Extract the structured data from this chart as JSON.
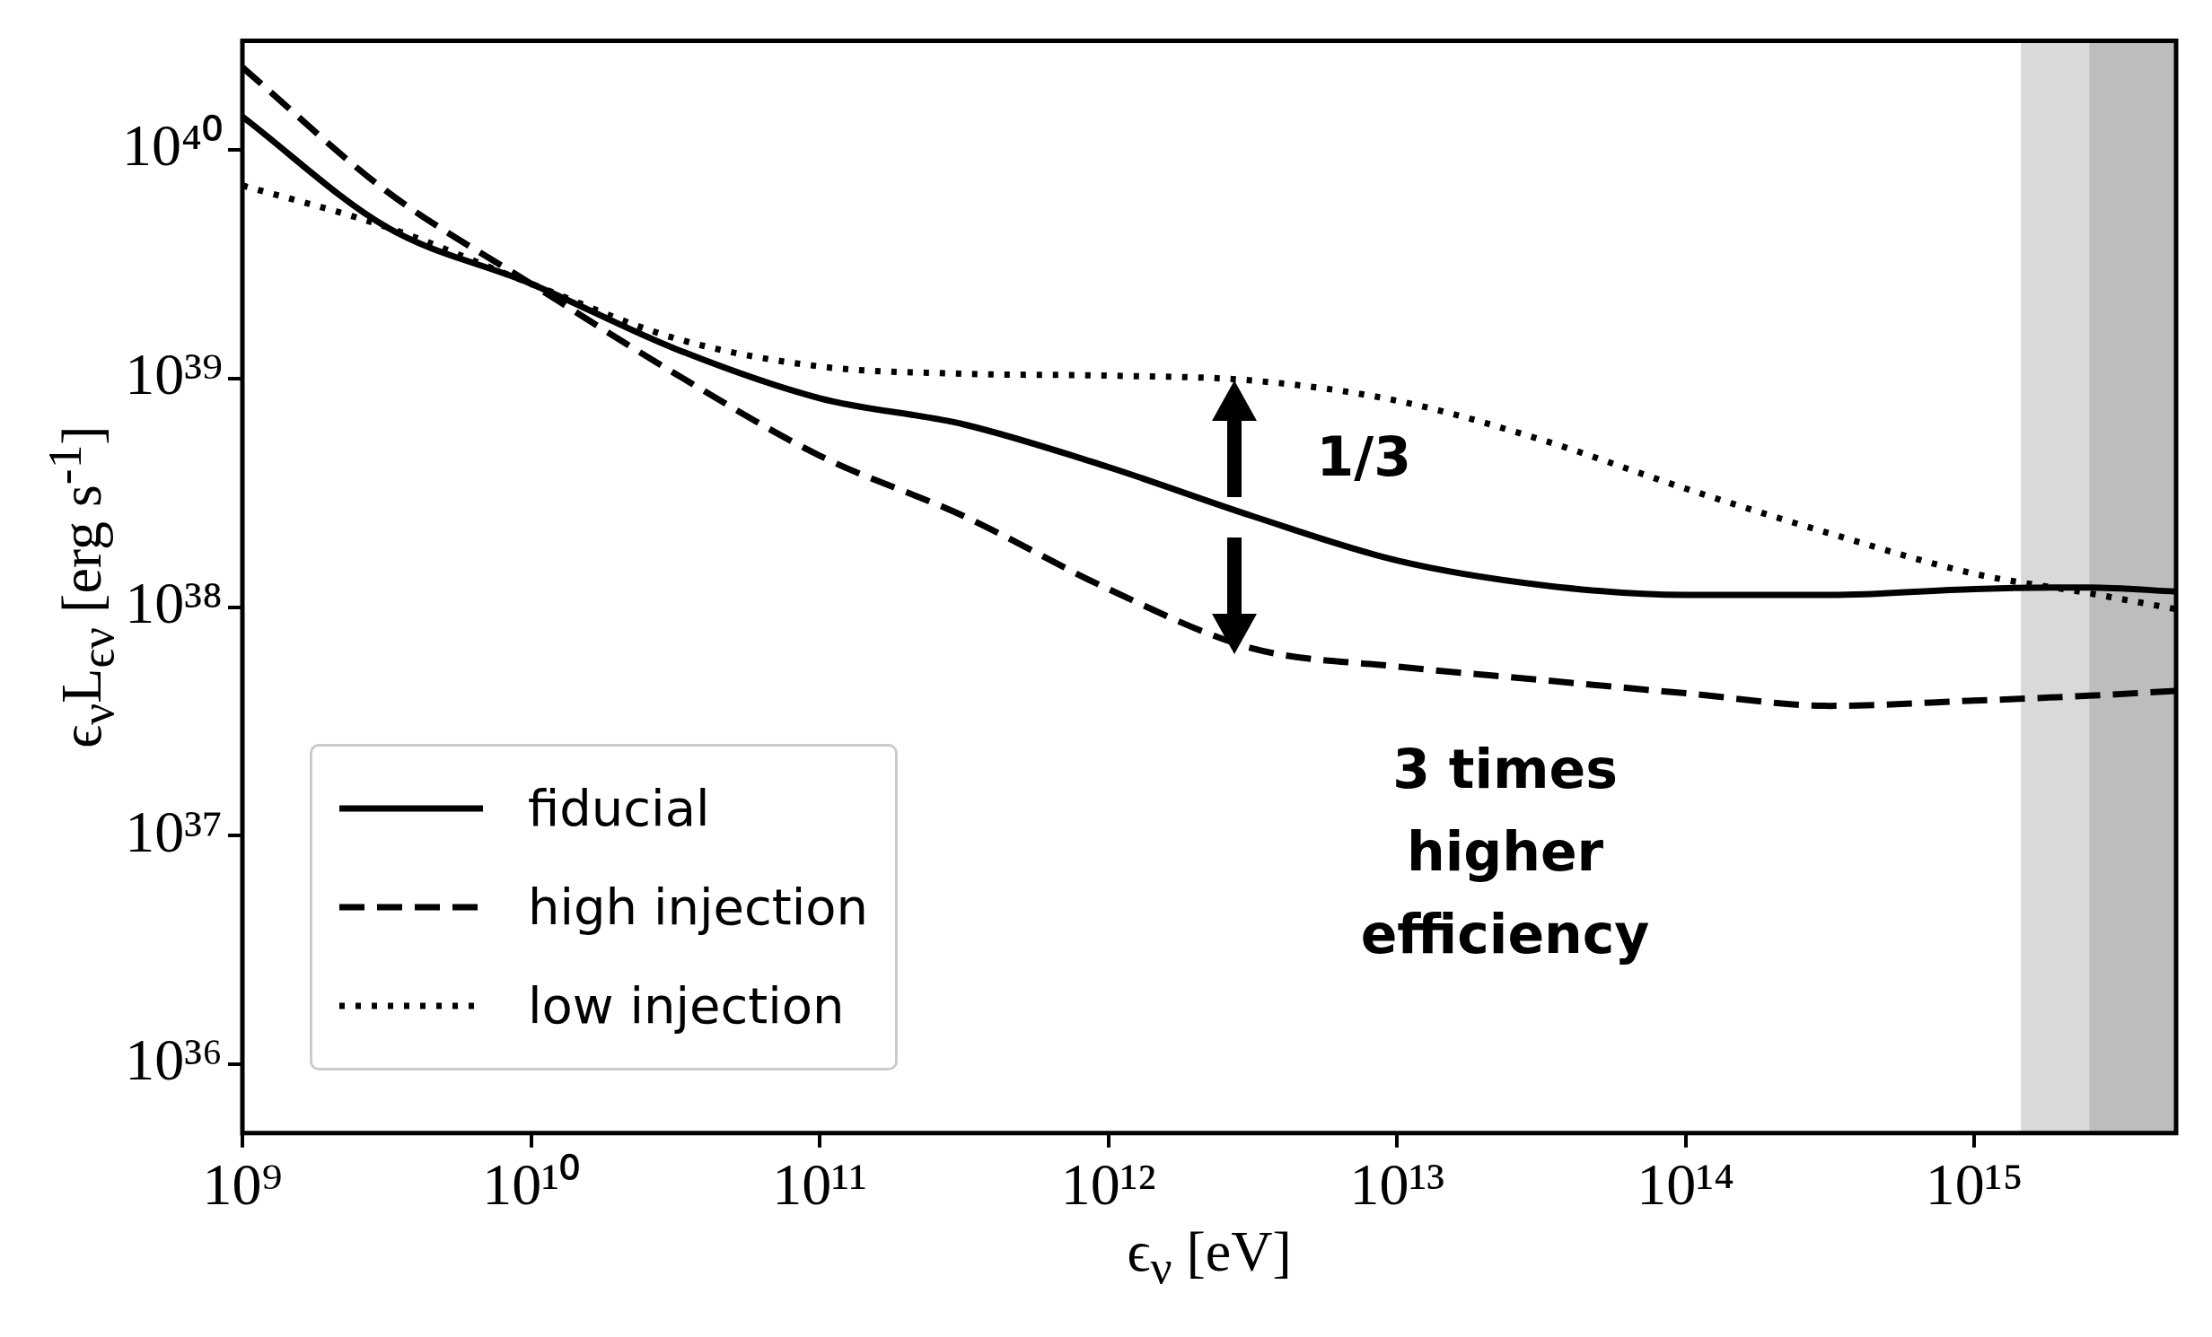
{
  "chart_data": {
    "type": "line",
    "xlabel": "ϵ$_{ν}$ [eV]",
    "ylabel": "ϵ$_{ν}$L$_{ϵν}$ [erg s$^{-1}$]",
    "log": "xy",
    "marker": "none",
    "legend": "bottom left",
    "xlim": [
      1000000000.0,
      5000000000000000.0
    ],
    "ylim": [
      5e+35,
      3e+40
    ],
    "xticks": [
      {
        "value": 1000000000.0,
        "label": "10⁹"
      },
      {
        "value": 10000000000.0,
        "label": "10¹⁰"
      },
      {
        "value": 100000000000.0,
        "label": "10¹¹"
      },
      {
        "value": 1000000000000.0,
        "label": "10¹²"
      },
      {
        "value": 10000000000000.0,
        "label": "10¹³"
      },
      {
        "value": 100000000000000.0,
        "label": "10¹⁴"
      },
      {
        "value": 1000000000000000.0,
        "label": "10¹⁵"
      }
    ],
    "yticks": [
      {
        "value": 1e+36,
        "label": "10³⁶"
      },
      {
        "value": 1e+37,
        "label": "10³⁷"
      },
      {
        "value": 1e+38,
        "label": "10³⁸"
      },
      {
        "value": 1e+39,
        "label": "10³⁹"
      },
      {
        "value": 1e+40,
        "label": "10⁴⁰"
      }
    ],
    "x": [
      1000000000.0,
      3160000000.0,
      10000000000.0,
      31600000000.0,
      100000000000.0,
      316000000000.0,
      1000000000000.0,
      3160000000000.0,
      10000000000000.0,
      31600000000000.0,
      100000000000000.0,
      316000000000000.0,
      1000000000000000.0,
      2500000000000000.0,
      5000000000000000.0
    ],
    "series": [
      {
        "name": "fiducial",
        "color": "#000000",
        "line_style": "solid",
        "values": [
          1.4e+40,
          4.6e+39,
          2.6e+39,
          1.35e+39,
          8.2e+38,
          6.3e+38,
          4.1e+38,
          2.5e+38,
          1.6e+38,
          1.25e+38,
          1.13e+38,
          1.13e+38,
          1.2e+38,
          1.22e+38,
          1.17e+38
        ]
      },
      {
        "name": "high injection",
        "color": "#000000",
        "line_style": "dashed",
        "values": [
          2.3e+40,
          6.6e+39,
          2.6e+39,
          1.05e+39,
          4.6e+38,
          2.5e+38,
          1.2e+38,
          6.6e+37,
          5.5e+37,
          4.8e+37,
          4.2e+37,
          3.7e+37,
          3.9e+37,
          4.1e+37,
          4.3e+37
        ]
      },
      {
        "name": "low injection",
        "color": "#000000",
        "line_style": "dotted",
        "values": [
          7e+39,
          4.6e+39,
          2.6e+39,
          1.5e+39,
          1.13e+39,
          1.05e+39,
          1.03e+39,
          9.8e+38,
          8e+38,
          5.4e+38,
          3.3e+38,
          2.1e+38,
          1.4e+38,
          1.15e+38,
          9.8e+37
        ]
      }
    ],
    "bands": [
      {
        "axis": "x",
        "from": 1450000000000000.0,
        "to": 2500000000000000.0,
        "color": "#d9d9d9"
      },
      {
        "axis": "x",
        "from": 2500000000000000.0,
        "to": 5000000000000000.0,
        "color": "#bdbdbd"
      }
    ],
    "annotations": [
      "1/3",
      "3 times\nhigher\nefficiency"
    ]
  }
}
